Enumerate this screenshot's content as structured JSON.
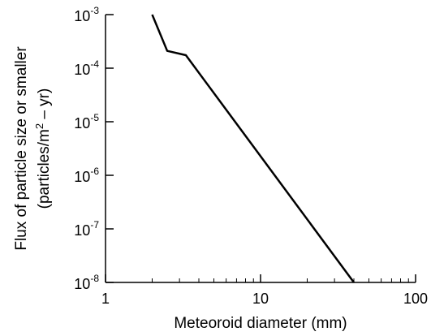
{
  "chart_data": {
    "type": "line",
    "x_scale": "log",
    "y_scale": "log",
    "xlim": [
      1,
      100
    ],
    "ylim": [
      1e-08,
      0.001
    ],
    "grid": false,
    "xlabel": "Meteoroid diameter (mm)",
    "ylabel_line1": "Flux of particle size or smaller",
    "ylabel_line2_main": "(particles/m",
    "ylabel_line2_sup": "2",
    "ylabel_line2_rest": " – yr)",
    "x_ticks": [
      {
        "value": 1,
        "label": "1"
      },
      {
        "value": 10,
        "label": "10"
      },
      {
        "value": 100,
        "label": "100"
      }
    ],
    "y_ticks": [
      {
        "value": 0.001,
        "base": "10",
        "exp": "-3"
      },
      {
        "value": 0.0001,
        "base": "10",
        "exp": "-4"
      },
      {
        "value": 1e-05,
        "base": "10",
        "exp": "-5"
      },
      {
        "value": 1e-06,
        "base": "10",
        "exp": "-6"
      },
      {
        "value": 1e-07,
        "base": "10",
        "exp": "-7"
      },
      {
        "value": 1e-08,
        "base": "10",
        "exp": "-8"
      }
    ],
    "series": [
      {
        "color": "#000000",
        "points": [
          {
            "x": 2.0,
            "y": 0.001
          },
          {
            "x": 2.5,
            "y": 0.00021
          },
          {
            "x": 3.3,
            "y": 0.000175
          },
          {
            "x": 40,
            "y": 1e-08
          }
        ]
      }
    ]
  }
}
